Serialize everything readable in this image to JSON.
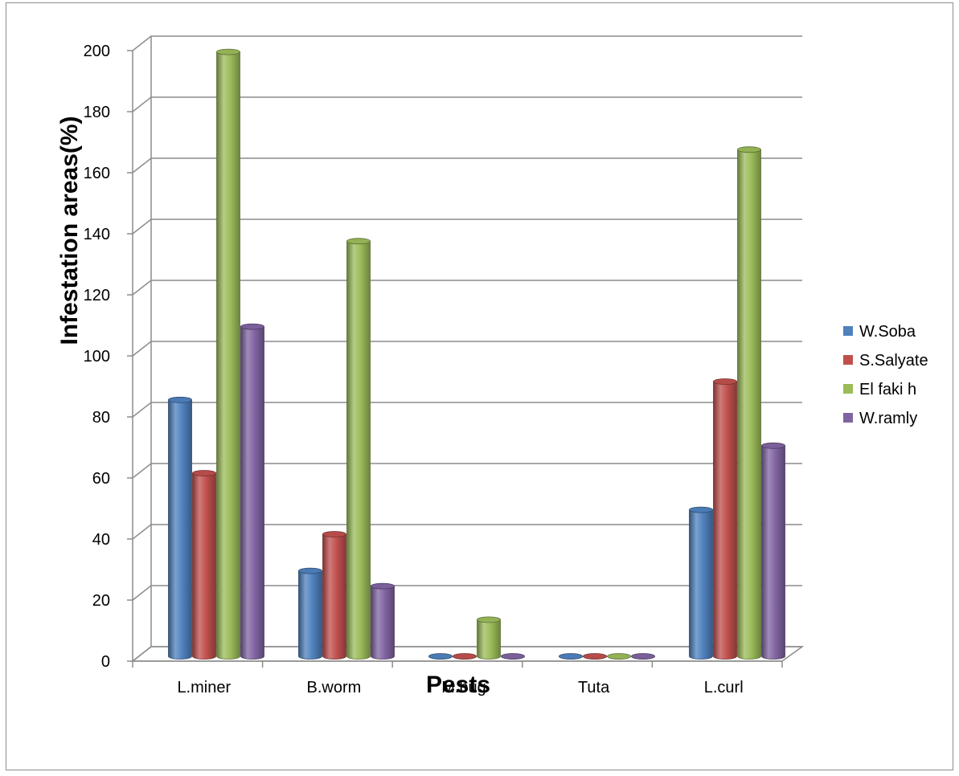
{
  "chart_data": {
    "type": "bar",
    "title": "",
    "xlabel": "Pests",
    "ylabel": "Infestation areas(%)",
    "ylim": [
      0,
      200
    ],
    "yticks": [
      0,
      20,
      40,
      60,
      80,
      100,
      120,
      140,
      160,
      180,
      200
    ],
    "categories": [
      "L.miner",
      "B.worm",
      "M.bug",
      "Tuta",
      "L.curl"
    ],
    "series": [
      {
        "name": "W.Soba",
        "color": "#4f81bd",
        "values": [
          84,
          28,
          0,
          0,
          48
        ]
      },
      {
        "name": "S.Salyate",
        "color": "#c0504d",
        "values": [
          60,
          40,
          0,
          0,
          90
        ]
      },
      {
        "name": "El faki h",
        "color": "#9bbb59",
        "values": [
          198,
          136,
          12,
          0,
          166
        ]
      },
      {
        "name": "W.ramly",
        "color": "#8064a2",
        "values": [
          108,
          23,
          0,
          0,
          69
        ]
      }
    ],
    "grid": true,
    "legend": "right",
    "style": "3d-cylinder"
  }
}
